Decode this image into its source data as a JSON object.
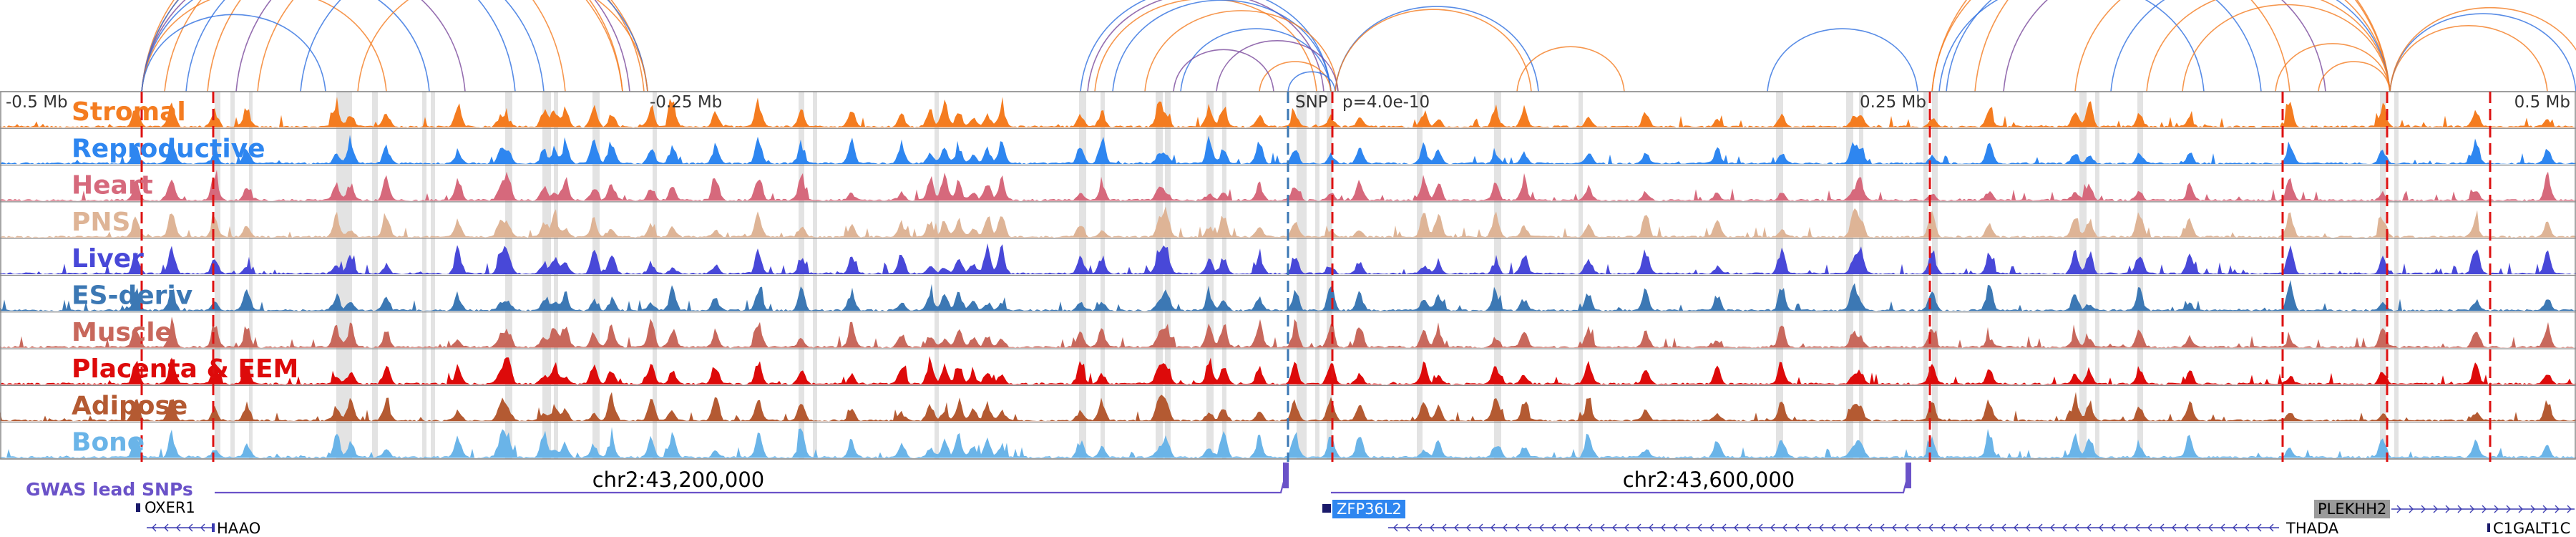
{
  "axis": {
    "ticks": [
      {
        "label": "-0.5 Mb",
        "pos": 0.0,
        "align": "start"
      },
      {
        "label": "-0.25 Mb",
        "pos": 0.25,
        "align": "start"
      },
      {
        "label": "0.25 Mb",
        "pos": 0.75,
        "align": "end"
      },
      {
        "label": "0.5 Mb",
        "pos": 1.0,
        "align": "end"
      }
    ],
    "snp_label": "SNP",
    "pvalue_label": "p=4.0e-10"
  },
  "tracks": [
    {
      "name": "Stromal",
      "color": "#f47c20"
    },
    {
      "name": "Reproductive",
      "color": "#2e86f0"
    },
    {
      "name": "Heart",
      "color": "#d6697c"
    },
    {
      "name": "PNS",
      "color": "#deb496"
    },
    {
      "name": "Liver",
      "color": "#4848d8"
    },
    {
      "name": "ES-deriv",
      "color": "#3c78b4"
    },
    {
      "name": "Muscle",
      "color": "#c8685c"
    },
    {
      "name": "Placenta & EEM",
      "color": "#dd0a0a"
    },
    {
      "name": "Adipose",
      "color": "#b45a32"
    },
    {
      "name": "Bone",
      "color": "#6ab4e8"
    }
  ],
  "gwas": {
    "label": "GWAS lead SNPs",
    "color": "#6a52c8",
    "coord_labels": [
      "chr2:43,200,000",
      "chr2:43,600,000"
    ]
  },
  "genes": [
    {
      "name": "OXER1",
      "highlight": false,
      "strand": "",
      "box": "#1a1a6a"
    },
    {
      "name": "HAAO",
      "highlight": false,
      "strand": "-",
      "box": ""
    },
    {
      "name": "ZFP36L2",
      "highlight": true,
      "strand": "",
      "box": "#2e86f0"
    },
    {
      "name": "THADA",
      "highlight": false,
      "strand": "-",
      "box": ""
    },
    {
      "name": "PLEKHH2",
      "highlight": true,
      "strand": "+",
      "box": "#9a9a9a"
    },
    {
      "name": "C1GALT1C",
      "highlight": false,
      "strand": "",
      "box": "#1a1a6a"
    }
  ],
  "colors": {
    "grey_band": "#e3e3e3",
    "red_dash": "#dd1111",
    "blue_dash": "#3c78b4",
    "frame": "#888888",
    "gene_line": "#3a3ab0",
    "arc_orange": "#f47c20",
    "arc_blue": "#2e6fe0",
    "arc_purple": "#7a4a9c"
  }
}
